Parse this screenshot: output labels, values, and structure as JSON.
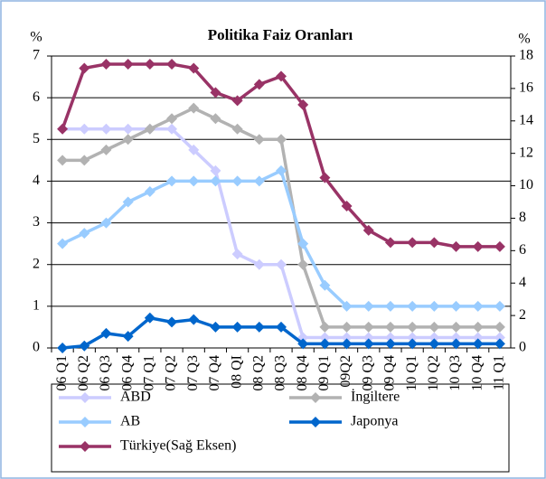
{
  "chart_data": {
    "type": "line",
    "title": "Politika Faiz Oranları",
    "ylabel": "%",
    "y2label": "%",
    "categories": [
      "06 Q1",
      "06 Q2",
      "06 Q3",
      "06 Q4",
      "07 Q1",
      "07 Q2",
      "07 Q3",
      "07 Q4",
      "08 QI",
      "08 Q2",
      "08 Q3",
      "08 Q4",
      "09 Q1",
      "09Q2",
      "09 Q3",
      "09 Q4",
      "10 Q1",
      "10 Q2",
      "10 Q3",
      "10 Q4",
      "11 Q1"
    ],
    "series": [
      {
        "name": "ABD",
        "color": "#ccccff",
        "values": [
          5.25,
          5.25,
          5.25,
          5.25,
          5.25,
          5.25,
          4.75,
          4.25,
          2.25,
          2.0,
          2.0,
          0.25,
          0.25,
          0.25,
          0.25,
          0.25,
          0.25,
          0.25,
          0.25,
          0.25,
          0.25
        ]
      },
      {
        "name": "İngiltere",
        "color": "#b2b2b2",
        "values": [
          4.5,
          4.5,
          4.75,
          5.0,
          5.25,
          5.5,
          5.75,
          5.5,
          5.25,
          5.0,
          5.0,
          2.0,
          0.5,
          0.5,
          0.5,
          0.5,
          0.5,
          0.5,
          0.5,
          0.5,
          0.5
        ]
      },
      {
        "name": "AB",
        "color": "#99ccff",
        "values": [
          2.5,
          2.75,
          3.0,
          3.5,
          3.75,
          4.0,
          4.0,
          4.0,
          4.0,
          4.0,
          4.25,
          2.5,
          1.5,
          1.0,
          1.0,
          1.0,
          1.0,
          1.0,
          1.0,
          1.0,
          1.0
        ]
      },
      {
        "name": "Japonya",
        "color": "#0066cc",
        "values": [
          0,
          0.05,
          0.35,
          0.28,
          0.72,
          0.62,
          0.68,
          0.5,
          0.5,
          0.5,
          0.5,
          0.1,
          0.1,
          0.1,
          0.1,
          0.1,
          0.1,
          0.1,
          0.1,
          0.1,
          0.1
        ]
      },
      {
        "name": "Türkiye(Sağ Eksen)",
        "color": "#993366",
        "axis": "y2",
        "values": [
          13.5,
          17.25,
          17.5,
          17.5,
          17.5,
          17.5,
          17.25,
          15.75,
          15.25,
          16.25,
          16.75,
          15.0,
          10.5,
          8.75,
          7.25,
          6.5,
          6.5,
          6.5,
          6.25,
          6.25,
          6.25
        ]
      }
    ],
    "ylim": [
      0,
      7
    ],
    "yticks": [
      0,
      1,
      2,
      3,
      4,
      5,
      6,
      7
    ],
    "y2lim": [
      0,
      18
    ],
    "y2ticks": [
      0,
      2,
      4,
      6,
      8,
      10,
      12,
      14,
      16,
      18
    ],
    "grid": true,
    "legend": "bottom"
  }
}
